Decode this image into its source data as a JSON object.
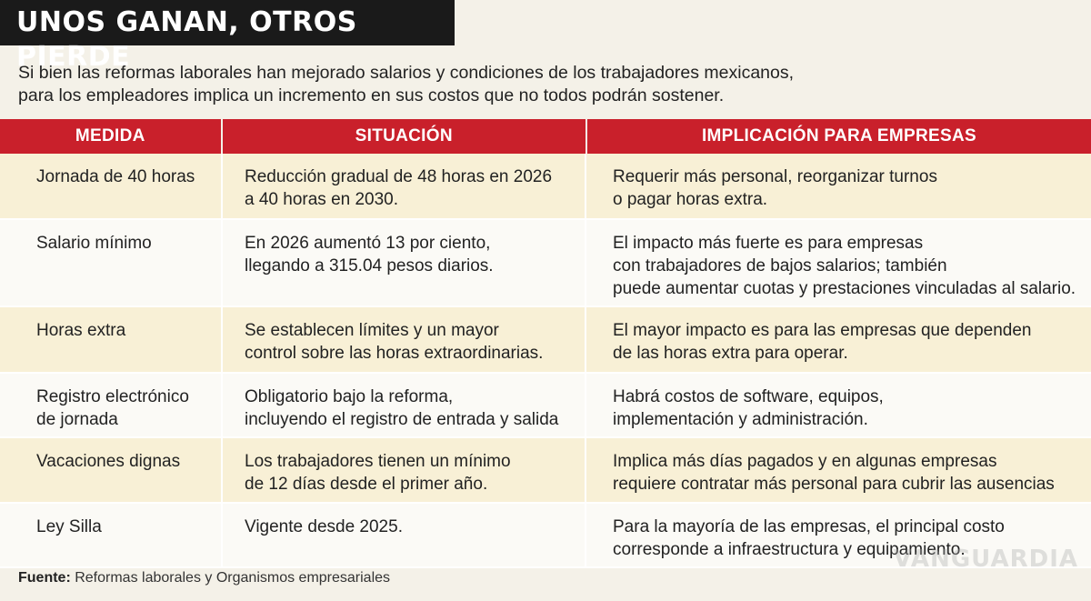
{
  "title": "UNOS GANAN, OTROS PIERDE",
  "intro": {
    "line1": "Si bien las reformas laborales han mejorado salarios y condiciones de los trabajadores mexicanos,",
    "line2": "para los empleadores implica un incremento en sus costos que no todos podrán sostener."
  },
  "table": {
    "headers": [
      "MEDIDA",
      "SITUACIÓN",
      "IMPLICACIÓN PARA EMPRESAS"
    ],
    "rows": [
      {
        "medida": [
          "Jornada de 40 horas"
        ],
        "situacion": [
          "Reducción gradual de 48 horas en 2026",
          "a 40 horas en 2030."
        ],
        "implicacion": [
          "Requerir más personal, reorganizar turnos",
          "o pagar horas extra."
        ]
      },
      {
        "medida": [
          "Salario mínimo"
        ],
        "situacion": [
          "En 2026 aumentó 13 por ciento,",
          "llegando a 315.04 pesos diarios."
        ],
        "implicacion": [
          "El impacto más fuerte es para empresas",
          "con trabajadores de bajos salarios; también",
          "puede aumentar cuotas y prestaciones vinculadas al salario."
        ]
      },
      {
        "medida": [
          "Horas extra"
        ],
        "situacion": [
          "Se establecen límites y un mayor",
          "control sobre las horas extraordinarias."
        ],
        "implicacion": [
          "El mayor impacto es para las empresas que dependen",
          "de las horas extra para operar."
        ]
      },
      {
        "medida": [
          "Registro electrónico",
          "de jornada"
        ],
        "situacion": [
          "Obligatorio bajo la reforma,",
          "incluyendo el registro de entrada y salida"
        ],
        "implicacion": [
          "Habrá costos de software, equipos,",
          "implementación y administración."
        ]
      },
      {
        "medida": [
          "Vacaciones dignas"
        ],
        "situacion": [
          "Los trabajadores tienen un mínimo",
          "de 12 días desde el primer año."
        ],
        "implicacion": [
          "Implica más días pagados y en algunas empresas",
          "requiere contratar más personal para cubrir las ausencias"
        ]
      },
      {
        "medida": [
          "Ley Silla"
        ],
        "situacion": [
          "Vigente desde 2025."
        ],
        "implicacion": [
          "Para la mayoría de las empresas, el principal costo",
          "corresponde a infraestructura y equipamiento."
        ]
      }
    ]
  },
  "source": {
    "label": "Fuente:",
    "text": " Reformas laborales y Organismos empresariales"
  },
  "watermark": "VANGUARDIA"
}
